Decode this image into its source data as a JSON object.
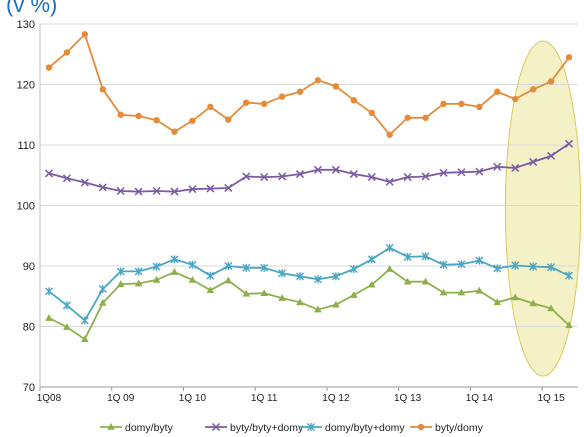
{
  "chart_data": {
    "type": "line",
    "title": "(v %)",
    "xlabel": "",
    "ylabel": "",
    "ylim": [
      70,
      130
    ],
    "yticks": [
      70,
      80,
      90,
      100,
      110,
      120,
      130
    ],
    "grid": true,
    "legend_position": "bottom",
    "x_tick_labels": [
      "1Q08",
      "1Q 09",
      "1Q 10",
      "1Q 11",
      "1Q 12",
      "1Q 13",
      "1Q 14",
      "1Q 15"
    ],
    "x_tick_every": 4,
    "highlight": {
      "from_index": 26,
      "to_index": 30,
      "color": "#f3efc0"
    },
    "series": [
      {
        "name": "domy/byty",
        "color": "#8eb04c",
        "marker": "triangle",
        "values": [
          81.4,
          79.9,
          77.9,
          83.9,
          87.0,
          87.1,
          87.7,
          89.0,
          87.7,
          86.0,
          87.6,
          85.4,
          85.5,
          84.7,
          84.0,
          82.8,
          83.6,
          85.2,
          86.9,
          89.5,
          87.4,
          87.4,
          85.6,
          85.6,
          85.9,
          84.0,
          84.8,
          83.8,
          83.0,
          80.2
        ]
      },
      {
        "name": "byty/byty+domy",
        "color": "#7b5ba2",
        "marker": "x",
        "values": [
          105.3,
          104.5,
          103.8,
          103.0,
          102.4,
          102.3,
          102.4,
          102.3,
          102.7,
          102.8,
          102.9,
          104.8,
          104.7,
          104.8,
          105.2,
          105.9,
          105.9,
          105.2,
          104.7,
          103.9,
          104.7,
          104.8,
          105.4,
          105.5,
          105.6,
          106.4,
          106.2,
          107.2,
          108.2,
          110.2
        ]
      },
      {
        "name": "domy/byty+domy",
        "color": "#4aa6c4",
        "marker": "star",
        "values": [
          85.8,
          83.5,
          81.0,
          86.2,
          89.1,
          89.1,
          89.9,
          91.1,
          90.2,
          88.4,
          90.0,
          89.7,
          89.7,
          88.8,
          88.3,
          87.8,
          88.3,
          89.5,
          91.1,
          93.0,
          91.5,
          91.6,
          90.2,
          90.3,
          90.9,
          89.6,
          90.1,
          89.9,
          89.8,
          88.4
        ]
      },
      {
        "name": "byty/domy",
        "color": "#e58b3a",
        "marker": "circle",
        "values": [
          122.8,
          125.3,
          128.3,
          119.2,
          115.0,
          114.8,
          114.1,
          112.2,
          114.0,
          116.3,
          114.2,
          117.0,
          116.8,
          118.0,
          118.8,
          120.7,
          119.7,
          117.4,
          115.3,
          111.7,
          114.5,
          114.5,
          116.8,
          116.8,
          116.3,
          118.8,
          117.6,
          119.2,
          120.5,
          124.5
        ]
      }
    ]
  }
}
